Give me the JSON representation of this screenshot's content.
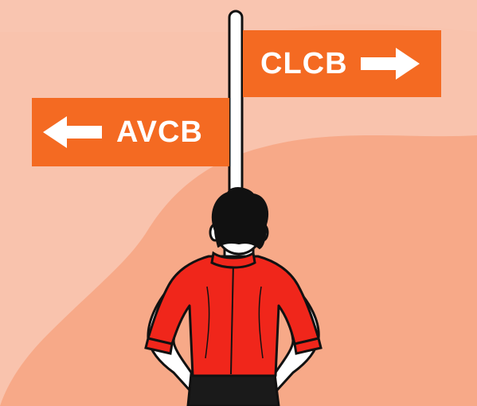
{
  "signs": {
    "right": {
      "label": "CLCB",
      "direction": "right-arrow-icon"
    },
    "left": {
      "label": "AVCB",
      "direction": "left-arrow-icon"
    }
  },
  "colors": {
    "background": "#f9c3ad",
    "background_shape": "#f7a988",
    "sign": "#f46a22",
    "shirt": "#f0261b",
    "hair": "#111111",
    "pole": "#ffffff"
  }
}
